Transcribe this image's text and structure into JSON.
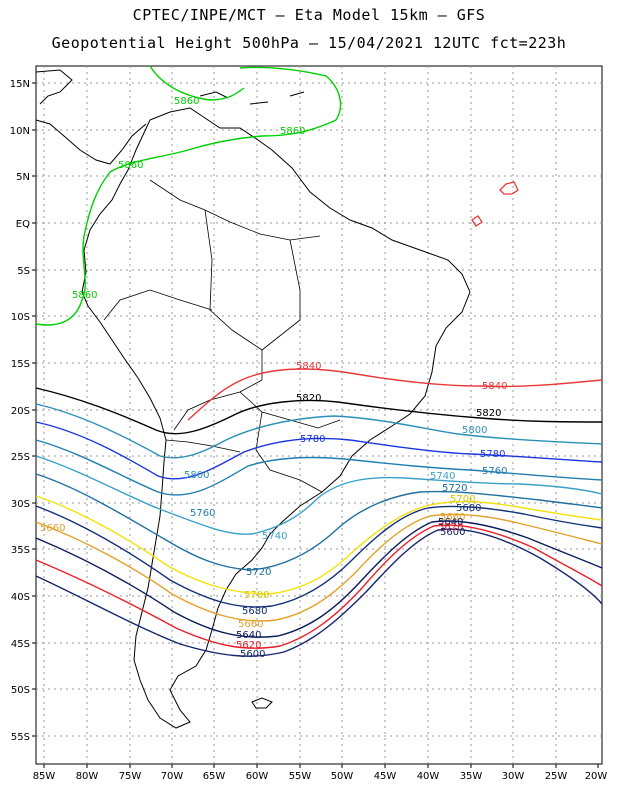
{
  "header": {
    "line1": "CPTEC/INPE/MCT –  Eta Model 15km – GFS",
    "line2": "Geopotential Height 500hPa – 15/04/2021 12UTC fct=223h"
  },
  "axes": {
    "lat_labels": [
      "15N",
      "10N",
      "5N",
      "EQ",
      "5S",
      "10S",
      "15S",
      "20S",
      "25S",
      "30S",
      "35S",
      "40S",
      "45S",
      "50S",
      "55S"
    ],
    "lon_labels": [
      "85W",
      "80W",
      "75W",
      "70W",
      "65W",
      "60W",
      "55W",
      "50W",
      "45W",
      "40W",
      "35W",
      "30W",
      "25W",
      "20W"
    ]
  },
  "colors": {
    "c5560": "#0b2a70",
    "c5580": "#ff0000",
    "c5600": "#16256e",
    "c5620": "#e8202a",
    "c5640": "#0a1c5a",
    "c5660": "#e3a02a",
    "c5680": "#14307a",
    "c5700": "#f2e20a",
    "c5720": "#1e6fa0",
    "c5740": "#3aa0c8",
    "c5760": "#1f7fb0",
    "c5780": "#1a35e0",
    "c5800": "#2a8fb8",
    "c5820": "#000000",
    "c5840": "#e8383a",
    "c5860": "#00d000"
  },
  "contours": {
    "labels": {
      "c5860_a": "5860",
      "c5860_b": "5860",
      "c5860_c": "5860",
      "c5860_d": "5860",
      "c5840_a": "5840",
      "c5840_b": "5840",
      "c5820_a": "5820",
      "c5820_b": "5820",
      "c5800_a": "5800",
      "c5800_b": "5800",
      "c5780_a": "5780",
      "c5780_b": "5780",
      "c5760_a": "5760",
      "c5760_b": "5760",
      "c5740_a": "5740",
      "c5740_b": "5740",
      "c5720_a": "5720",
      "c5720_b": "5720",
      "c5700_a": "5700",
      "c5700_b": "5700",
      "c5680_a": "5680",
      "c5680_b": "5680",
      "c5660_a": "5660",
      "c5660_b": "5660",
      "c5660_c": "5660",
      "c5640_a": "5640",
      "c5640_b": "5640",
      "c5620_a": "5620",
      "c5620_b": "5620",
      "c5600_a": "5600",
      "c5600_b": "5600"
    }
  }
}
